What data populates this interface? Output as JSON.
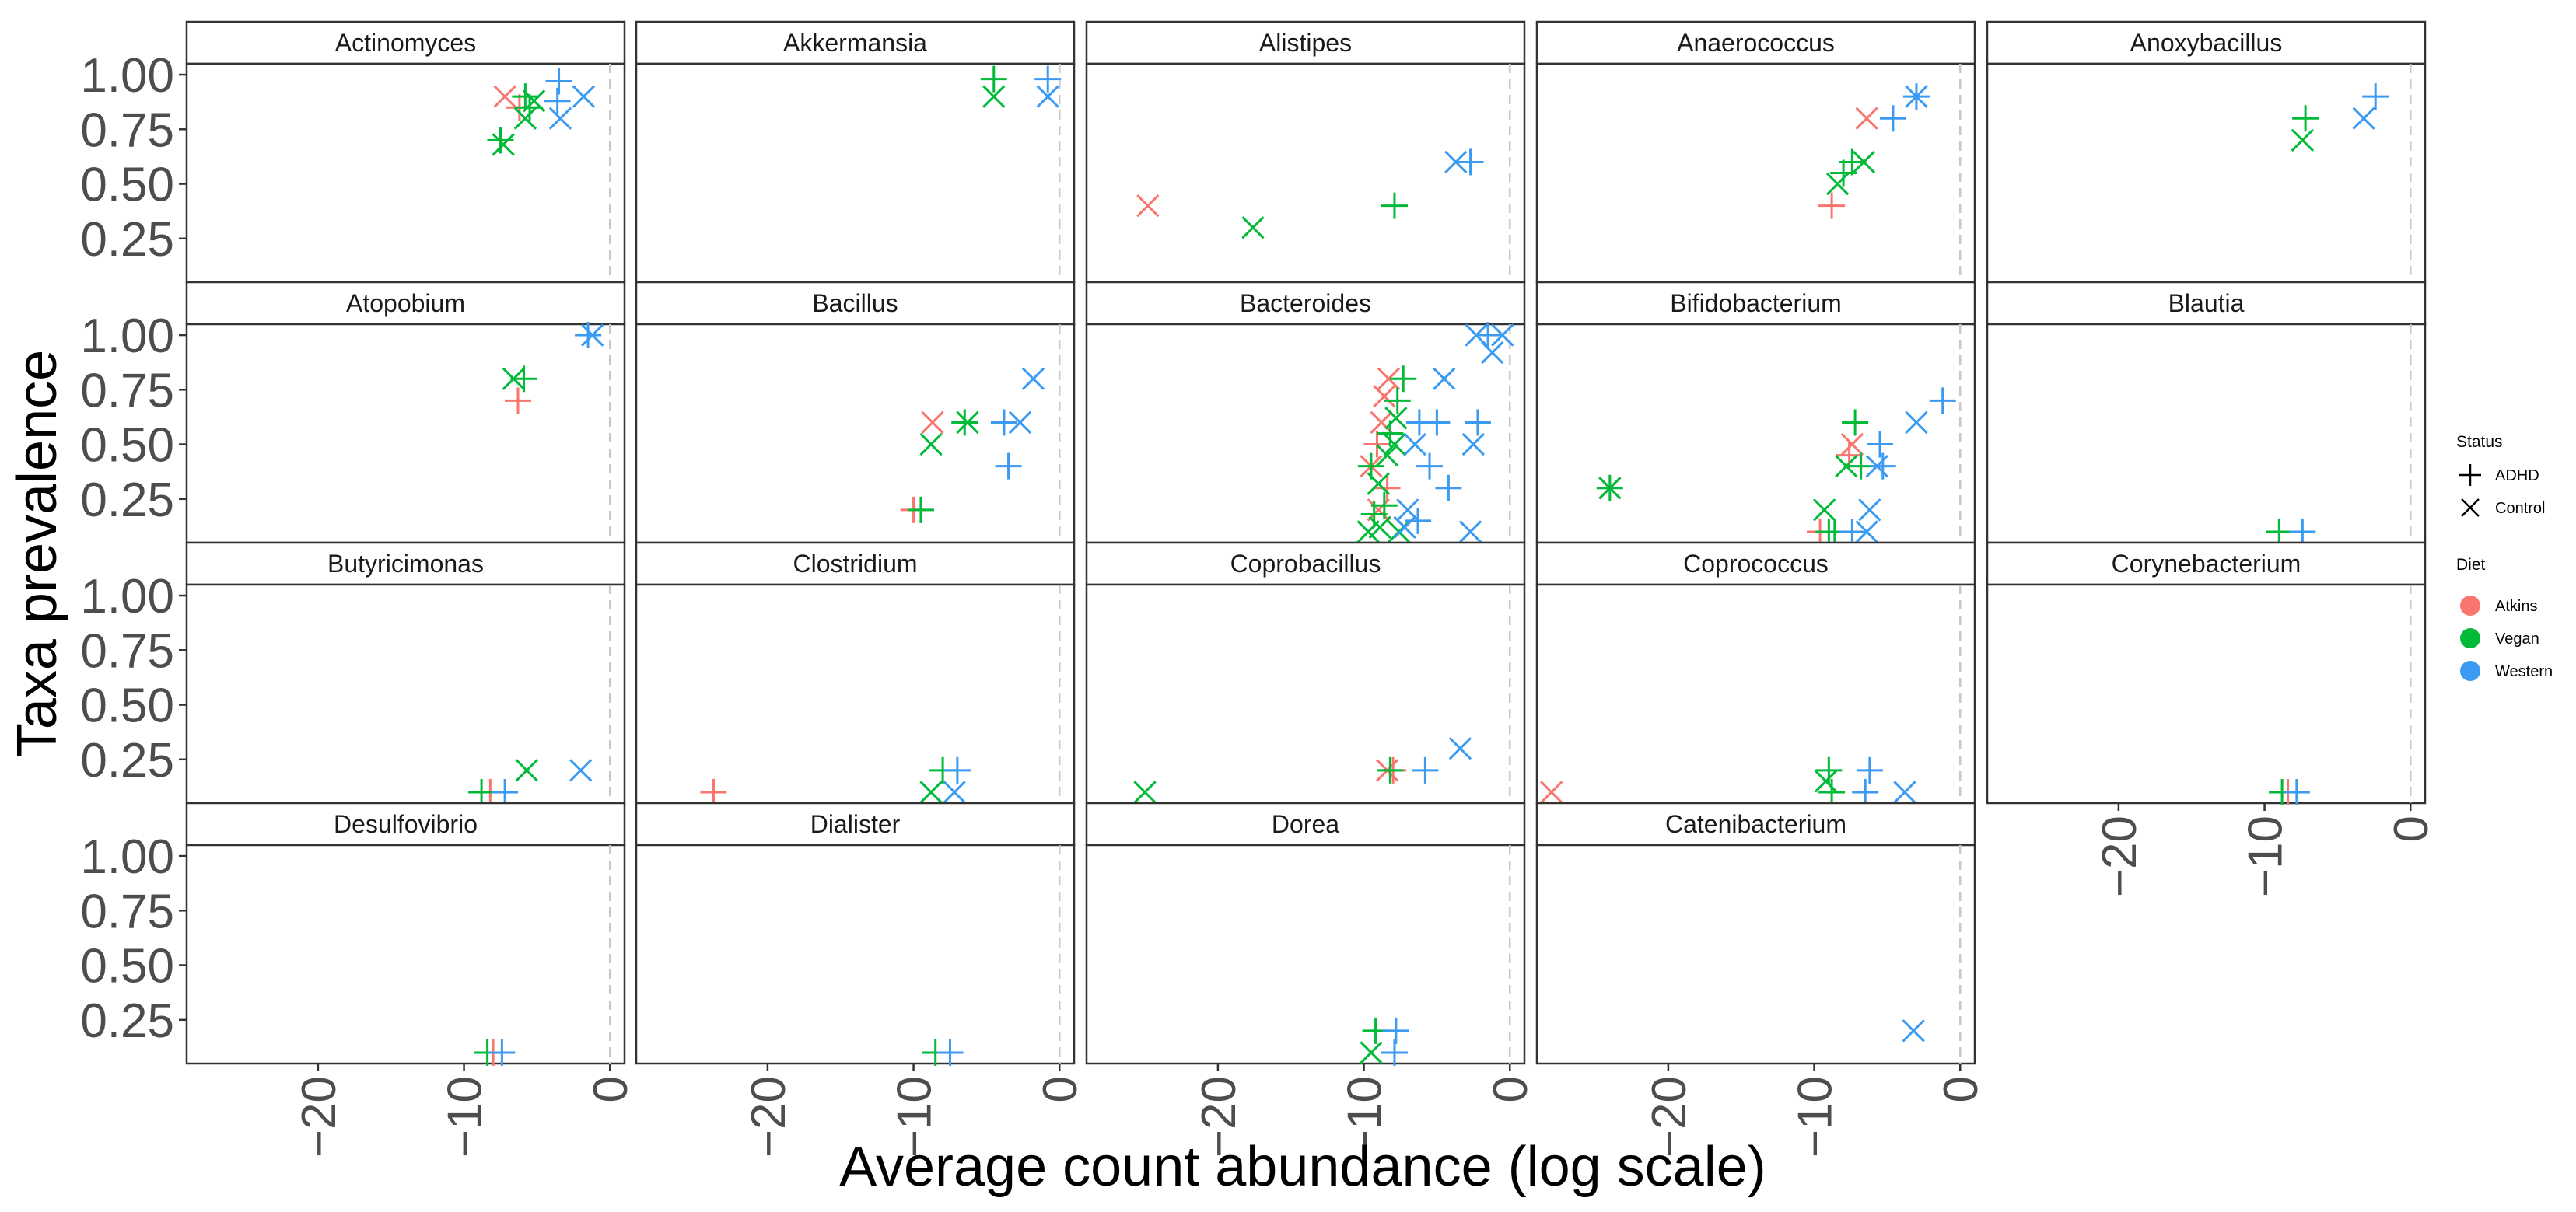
{
  "chart_data": {
    "type": "scatter",
    "facet_layout": "wrap",
    "xlabel": "Average count abundance (log scale)",
    "ylabel": "Taxa prevalence",
    "xlim": [
      -29,
      1
    ],
    "ylim": [
      0.05,
      1.05
    ],
    "xticks": [
      -20,
      -10,
      0
    ],
    "xtick_labels": [
      "−20",
      "−10",
      "0"
    ],
    "yticks": [
      0.25,
      0.5,
      0.75,
      1.0
    ],
    "ytick_labels": [
      "0.25",
      "0.50",
      "0.75",
      "1.00"
    ],
    "reference_line_x": 0,
    "legend": {
      "position": "right",
      "status_title": "Status",
      "status_entries": [
        {
          "label": "ADHD",
          "shape": "plus"
        },
        {
          "label": "Control",
          "shape": "cross"
        }
      ],
      "diet_title": "Diet",
      "diet_entries": [
        {
          "label": "Atkins",
          "color": "#F8766D"
        },
        {
          "label": "Vegan",
          "color": "#00BA38"
        },
        {
          "label": "Western",
          "color": "#3B9AF2"
        }
      ]
    },
    "series_key": "each point: x = average log count abundance, y = prevalence, d = diet (A=Atkins, V=Vegan, W=Western), s = status (P=ADHD plus, X=Control cross)",
    "panels": [
      {
        "title": "Actinomyces",
        "points": [
          {
            "x": -7.2,
            "y": 0.9,
            "d": "A",
            "s": "X"
          },
          {
            "x": -6.2,
            "y": 0.85,
            "d": "A",
            "s": "P"
          },
          {
            "x": -7.5,
            "y": 0.7,
            "d": "V",
            "s": "P"
          },
          {
            "x": -7.3,
            "y": 0.68,
            "d": "V",
            "s": "X"
          },
          {
            "x": -5.8,
            "y": 0.9,
            "d": "V",
            "s": "P"
          },
          {
            "x": -5.5,
            "y": 0.85,
            "d": "V",
            "s": "P"
          },
          {
            "x": -5.8,
            "y": 0.8,
            "d": "V",
            "s": "X"
          },
          {
            "x": -5.2,
            "y": 0.88,
            "d": "V",
            "s": "X"
          },
          {
            "x": -3.5,
            "y": 0.97,
            "d": "W",
            "s": "P"
          },
          {
            "x": -3.6,
            "y": 0.88,
            "d": "W",
            "s": "P"
          },
          {
            "x": -3.4,
            "y": 0.8,
            "d": "W",
            "s": "X"
          },
          {
            "x": -1.8,
            "y": 0.9,
            "d": "W",
            "s": "X"
          }
        ]
      },
      {
        "title": "Akkermansia",
        "points": [
          {
            "x": -4.5,
            "y": 0.98,
            "d": "V",
            "s": "P"
          },
          {
            "x": -4.5,
            "y": 0.9,
            "d": "V",
            "s": "X"
          },
          {
            "x": -0.8,
            "y": 0.98,
            "d": "W",
            "s": "P"
          },
          {
            "x": -0.8,
            "y": 0.9,
            "d": "W",
            "s": "X"
          }
        ]
      },
      {
        "title": "Alistipes",
        "points": [
          {
            "x": -24.8,
            "y": 0.4,
            "d": "A",
            "s": "X"
          },
          {
            "x": -17.6,
            "y": 0.3,
            "d": "V",
            "s": "X"
          },
          {
            "x": -7.9,
            "y": 0.4,
            "d": "V",
            "s": "P"
          },
          {
            "x": -3.7,
            "y": 0.6,
            "d": "W",
            "s": "X"
          },
          {
            "x": -2.7,
            "y": 0.6,
            "d": "W",
            "s": "P"
          }
        ]
      },
      {
        "title": "Anaerococcus",
        "points": [
          {
            "x": -8.8,
            "y": 0.4,
            "d": "A",
            "s": "P"
          },
          {
            "x": -6.4,
            "y": 0.8,
            "d": "A",
            "s": "X"
          },
          {
            "x": -8.4,
            "y": 0.5,
            "d": "V",
            "s": "X"
          },
          {
            "x": -8.0,
            "y": 0.55,
            "d": "V",
            "s": "P"
          },
          {
            "x": -7.4,
            "y": 0.6,
            "d": "V",
            "s": "P"
          },
          {
            "x": -6.6,
            "y": 0.6,
            "d": "V",
            "s": "X"
          },
          {
            "x": -4.6,
            "y": 0.8,
            "d": "W",
            "s": "P"
          },
          {
            "x": -3.0,
            "y": 0.9,
            "d": "W",
            "s": "P"
          },
          {
            "x": -3.0,
            "y": 0.9,
            "d": "W",
            "s": "X"
          }
        ]
      },
      {
        "title": "Anoxybacillus",
        "points": [
          {
            "x": -7.2,
            "y": 0.8,
            "d": "V",
            "s": "P"
          },
          {
            "x": -7.4,
            "y": 0.7,
            "d": "V",
            "s": "X"
          },
          {
            "x": -3.2,
            "y": 0.8,
            "d": "W",
            "s": "X"
          },
          {
            "x": -2.4,
            "y": 0.9,
            "d": "W",
            "s": "P"
          }
        ]
      },
      {
        "title": "Atopobium",
        "points": [
          {
            "x": -6.3,
            "y": 0.7,
            "d": "A",
            "s": "P"
          },
          {
            "x": -6.6,
            "y": 0.8,
            "d": "V",
            "s": "X"
          },
          {
            "x": -5.9,
            "y": 0.8,
            "d": "V",
            "s": "P"
          },
          {
            "x": -1.5,
            "y": 1.0,
            "d": "W",
            "s": "P"
          },
          {
            "x": -1.2,
            "y": 1.0,
            "d": "W",
            "s": "X"
          }
        ]
      },
      {
        "title": "Bacillus",
        "points": [
          {
            "x": -10.0,
            "y": 0.2,
            "d": "A",
            "s": "P"
          },
          {
            "x": -8.7,
            "y": 0.6,
            "d": "A",
            "s": "X"
          },
          {
            "x": -9.5,
            "y": 0.2,
            "d": "V",
            "s": "P"
          },
          {
            "x": -8.8,
            "y": 0.5,
            "d": "V",
            "s": "X"
          },
          {
            "x": -6.5,
            "y": 0.6,
            "d": "V",
            "s": "P"
          },
          {
            "x": -6.3,
            "y": 0.6,
            "d": "V",
            "s": "X"
          },
          {
            "x": -3.8,
            "y": 0.6,
            "d": "W",
            "s": "P"
          },
          {
            "x": -3.5,
            "y": 0.4,
            "d": "W",
            "s": "P"
          },
          {
            "x": -2.7,
            "y": 0.6,
            "d": "W",
            "s": "X"
          },
          {
            "x": -1.8,
            "y": 0.8,
            "d": "W",
            "s": "X"
          }
        ]
      },
      {
        "title": "Bacteroides",
        "points": [
          {
            "x": -8.3,
            "y": 0.8,
            "d": "A",
            "s": "X"
          },
          {
            "x": -8.6,
            "y": 0.72,
            "d": "A",
            "s": "X"
          },
          {
            "x": -8.8,
            "y": 0.6,
            "d": "A",
            "s": "X"
          },
          {
            "x": -9.1,
            "y": 0.5,
            "d": "A",
            "s": "P"
          },
          {
            "x": -9.5,
            "y": 0.4,
            "d": "A",
            "s": "X"
          },
          {
            "x": -8.4,
            "y": 0.3,
            "d": "A",
            "s": "P"
          },
          {
            "x": -9.0,
            "y": 0.2,
            "d": "A",
            "s": "X"
          },
          {
            "x": -7.3,
            "y": 0.8,
            "d": "V",
            "s": "P"
          },
          {
            "x": -7.7,
            "y": 0.7,
            "d": "V",
            "s": "P"
          },
          {
            "x": -7.8,
            "y": 0.62,
            "d": "V",
            "s": "X"
          },
          {
            "x": -8.2,
            "y": 0.55,
            "d": "V",
            "s": "P"
          },
          {
            "x": -7.9,
            "y": 0.5,
            "d": "V",
            "s": "X"
          },
          {
            "x": -8.4,
            "y": 0.45,
            "d": "V",
            "s": "X"
          },
          {
            "x": -9.5,
            "y": 0.4,
            "d": "V",
            "s": "P"
          },
          {
            "x": -9.0,
            "y": 0.32,
            "d": "V",
            "s": "X"
          },
          {
            "x": -8.6,
            "y": 0.22,
            "d": "V",
            "s": "P"
          },
          {
            "x": -9.3,
            "y": 0.18,
            "d": "V",
            "s": "P"
          },
          {
            "x": -8.9,
            "y": 0.12,
            "d": "V",
            "s": "X"
          },
          {
            "x": -9.7,
            "y": 0.1,
            "d": "V",
            "s": "X"
          },
          {
            "x": -7.6,
            "y": 0.1,
            "d": "V",
            "s": "X"
          },
          {
            "x": -1.5,
            "y": 1.0,
            "d": "W",
            "s": "P"
          },
          {
            "x": -2.3,
            "y": 1.0,
            "d": "W",
            "s": "X"
          },
          {
            "x": -0.5,
            "y": 1.0,
            "d": "W",
            "s": "X"
          },
          {
            "x": -1.2,
            "y": 0.92,
            "d": "W",
            "s": "X"
          },
          {
            "x": -4.5,
            "y": 0.8,
            "d": "W",
            "s": "X"
          },
          {
            "x": -6.2,
            "y": 0.6,
            "d": "W",
            "s": "P"
          },
          {
            "x": -5.0,
            "y": 0.6,
            "d": "W",
            "s": "P"
          },
          {
            "x": -2.2,
            "y": 0.6,
            "d": "W",
            "s": "P"
          },
          {
            "x": -2.5,
            "y": 0.5,
            "d": "W",
            "s": "X"
          },
          {
            "x": -6.5,
            "y": 0.5,
            "d": "W",
            "s": "X"
          },
          {
            "x": -5.5,
            "y": 0.4,
            "d": "W",
            "s": "P"
          },
          {
            "x": -4.2,
            "y": 0.3,
            "d": "W",
            "s": "P"
          },
          {
            "x": -7.0,
            "y": 0.2,
            "d": "W",
            "s": "X"
          },
          {
            "x": -6.3,
            "y": 0.15,
            "d": "W",
            "s": "P"
          },
          {
            "x": -7.2,
            "y": 0.12,
            "d": "W",
            "s": "X"
          },
          {
            "x": -2.7,
            "y": 0.1,
            "d": "W",
            "s": "X"
          }
        ]
      },
      {
        "title": "Bifidobacterium",
        "points": [
          {
            "x": -24.0,
            "y": 0.3,
            "d": "A",
            "s": "X"
          },
          {
            "x": -7.4,
            "y": 0.5,
            "d": "A",
            "s": "X"
          },
          {
            "x": -7.6,
            "y": 0.45,
            "d": "A",
            "s": "P"
          },
          {
            "x": -9.6,
            "y": 0.1,
            "d": "A",
            "s": "P"
          },
          {
            "x": -24.0,
            "y": 0.3,
            "d": "V",
            "s": "P"
          },
          {
            "x": -24.0,
            "y": 0.3,
            "d": "V",
            "s": "X"
          },
          {
            "x": -7.2,
            "y": 0.6,
            "d": "V",
            "s": "P"
          },
          {
            "x": -7.8,
            "y": 0.4,
            "d": "V",
            "s": "X"
          },
          {
            "x": -6.8,
            "y": 0.4,
            "d": "V",
            "s": "P"
          },
          {
            "x": -9.3,
            "y": 0.2,
            "d": "V",
            "s": "X"
          },
          {
            "x": -9.0,
            "y": 0.1,
            "d": "V",
            "s": "P"
          },
          {
            "x": -8.6,
            "y": 0.1,
            "d": "V",
            "s": "P"
          },
          {
            "x": -1.2,
            "y": 0.7,
            "d": "W",
            "s": "P"
          },
          {
            "x": -3.0,
            "y": 0.6,
            "d": "W",
            "s": "X"
          },
          {
            "x": -5.5,
            "y": 0.5,
            "d": "W",
            "s": "P"
          },
          {
            "x": -5.7,
            "y": 0.4,
            "d": "W",
            "s": "X"
          },
          {
            "x": -5.3,
            "y": 0.4,
            "d": "W",
            "s": "P"
          },
          {
            "x": -6.2,
            "y": 0.2,
            "d": "W",
            "s": "X"
          },
          {
            "x": -7.4,
            "y": 0.1,
            "d": "W",
            "s": "P"
          },
          {
            "x": -6.4,
            "y": 0.1,
            "d": "W",
            "s": "X"
          }
        ]
      },
      {
        "title": "Blautia",
        "points": [
          {
            "x": -9.0,
            "y": 0.1,
            "d": "V",
            "s": "P"
          },
          {
            "x": -7.4,
            "y": 0.1,
            "d": "W",
            "s": "P"
          }
        ]
      },
      {
        "title": "Butyricimonas",
        "points": [
          {
            "x": -8.2,
            "y": 0.1,
            "d": "A",
            "s": "P"
          },
          {
            "x": -8.8,
            "y": 0.1,
            "d": "V",
            "s": "P"
          },
          {
            "x": -5.7,
            "y": 0.2,
            "d": "V",
            "s": "X"
          },
          {
            "x": -7.2,
            "y": 0.1,
            "d": "W",
            "s": "P"
          },
          {
            "x": -2.0,
            "y": 0.2,
            "d": "W",
            "s": "X"
          }
        ]
      },
      {
        "title": "Clostridium",
        "points": [
          {
            "x": -23.7,
            "y": 0.1,
            "d": "A",
            "s": "P"
          },
          {
            "x": -8.0,
            "y": 0.2,
            "d": "V",
            "s": "P"
          },
          {
            "x": -8.8,
            "y": 0.1,
            "d": "V",
            "s": "X"
          },
          {
            "x": -7.0,
            "y": 0.2,
            "d": "W",
            "s": "P"
          },
          {
            "x": -7.2,
            "y": 0.1,
            "d": "W",
            "s": "X"
          }
        ]
      },
      {
        "title": "Coprobacillus",
        "points": [
          {
            "x": -8.4,
            "y": 0.2,
            "d": "A",
            "s": "X"
          },
          {
            "x": -8.0,
            "y": 0.2,
            "d": "A",
            "s": "P"
          },
          {
            "x": -25.0,
            "y": 0.1,
            "d": "V",
            "s": "X"
          },
          {
            "x": -8.2,
            "y": 0.2,
            "d": "V",
            "s": "P"
          },
          {
            "x": -5.8,
            "y": 0.2,
            "d": "W",
            "s": "P"
          },
          {
            "x": -3.4,
            "y": 0.3,
            "d": "W",
            "s": "X"
          }
        ]
      },
      {
        "title": "Coprococcus",
        "points": [
          {
            "x": -28.0,
            "y": 0.1,
            "d": "A",
            "s": "X"
          },
          {
            "x": -9.0,
            "y": 0.2,
            "d": "V",
            "s": "P"
          },
          {
            "x": -8.8,
            "y": 0.1,
            "d": "V",
            "s": "P"
          },
          {
            "x": -9.2,
            "y": 0.15,
            "d": "V",
            "s": "X"
          },
          {
            "x": -6.2,
            "y": 0.2,
            "d": "W",
            "s": "P"
          },
          {
            "x": -6.5,
            "y": 0.1,
            "d": "W",
            "s": "P"
          },
          {
            "x": -3.8,
            "y": 0.1,
            "d": "W",
            "s": "X"
          }
        ]
      },
      {
        "title": "Corynebacterium",
        "points": [
          {
            "x": -8.4,
            "y": 0.1,
            "d": "A",
            "s": "P"
          },
          {
            "x": -8.8,
            "y": 0.1,
            "d": "V",
            "s": "P"
          },
          {
            "x": -7.8,
            "y": 0.1,
            "d": "W",
            "s": "P"
          }
        ]
      },
      {
        "title": "Desulfovibrio",
        "points": [
          {
            "x": -8.0,
            "y": 0.1,
            "d": "A",
            "s": "P"
          },
          {
            "x": -8.4,
            "y": 0.1,
            "d": "V",
            "s": "P"
          },
          {
            "x": -7.4,
            "y": 0.1,
            "d": "W",
            "s": "P"
          }
        ]
      },
      {
        "title": "Dialister",
        "points": [
          {
            "x": -8.5,
            "y": 0.1,
            "d": "V",
            "s": "P"
          },
          {
            "x": -7.5,
            "y": 0.1,
            "d": "W",
            "s": "P"
          }
        ]
      },
      {
        "title": "Dorea",
        "points": [
          {
            "x": -9.2,
            "y": 0.2,
            "d": "V",
            "s": "P"
          },
          {
            "x": -9.5,
            "y": 0.1,
            "d": "V",
            "s": "X"
          },
          {
            "x": -7.8,
            "y": 0.2,
            "d": "W",
            "s": "P"
          },
          {
            "x": -7.9,
            "y": 0.1,
            "d": "W",
            "s": "P"
          }
        ]
      },
      {
        "title": "Catenibacterium",
        "points": [
          {
            "x": -3.2,
            "y": 0.2,
            "d": "W",
            "s": "X"
          }
        ]
      }
    ]
  }
}
